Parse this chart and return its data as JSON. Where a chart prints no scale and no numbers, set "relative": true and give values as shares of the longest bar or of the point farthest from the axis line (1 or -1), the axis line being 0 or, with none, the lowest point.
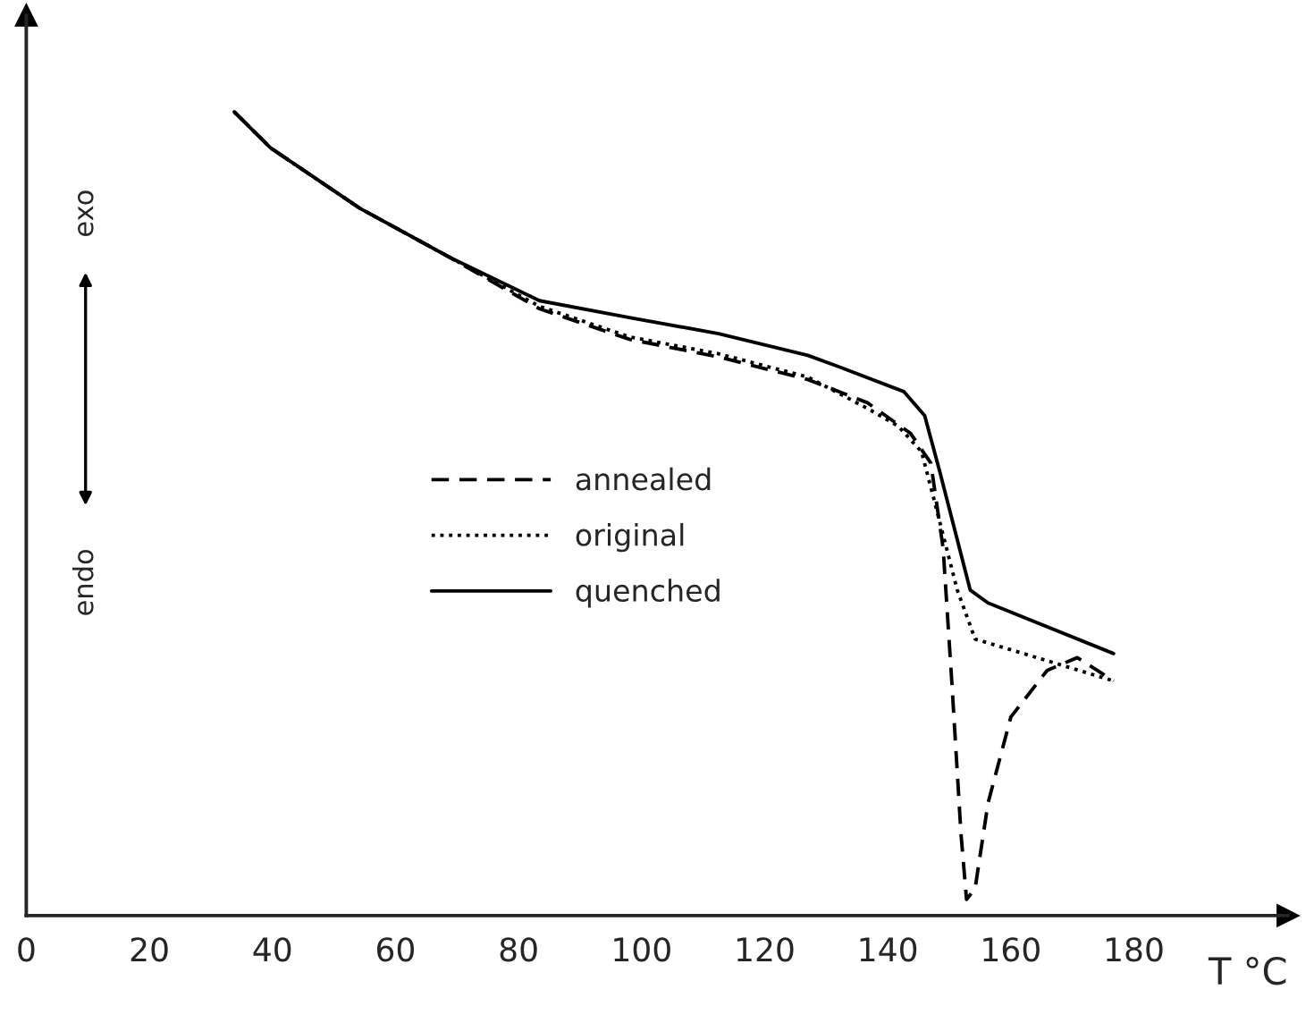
{
  "chart_data": {
    "type": "line",
    "relative": true,
    "xlabel": "T °C",
    "xlim": [
      0,
      205
    ],
    "xticks": [
      0,
      20,
      40,
      60,
      80,
      100,
      120,
      140,
      160,
      180
    ],
    "legend": "center left",
    "grid": false,
    "marker": "none",
    "annotations": [
      "exo",
      "endo"
    ],
    "series": [
      {
        "name": "annealed",
        "color": "#000000",
        "line_style": "dashed",
        "x": [
          33.8,
          39.7,
          54.2,
          68.8,
          83.4,
          98,
          112.5,
          127,
          136.7,
          143.7,
          147,
          149,
          150.4,
          151.9,
          152.8,
          154.2,
          156.3,
          160,
          165.9,
          170.8,
          176.7
        ],
        "values": [
          1.0,
          0.955,
          0.88,
          0.819,
          0.755,
          0.717,
          0.695,
          0.667,
          0.638,
          0.6,
          0.563,
          0.457,
          0.292,
          0.102,
          0.02,
          0.034,
          0.14,
          0.247,
          0.305,
          0.321,
          0.292
        ]
      },
      {
        "name": "original",
        "color": "#000000",
        "line_style": "dotted",
        "x": [
          33.8,
          39.7,
          54.2,
          68.8,
          83.4,
          98,
          112.5,
          127,
          136.7,
          141.7,
          145.5,
          147.5,
          151.3,
          154.2,
          161.2,
          176.7
        ],
        "values": [
          1.0,
          0.955,
          0.88,
          0.819,
          0.758,
          0.72,
          0.699,
          0.67,
          0.631,
          0.609,
          0.577,
          0.518,
          0.405,
          0.344,
          0.328,
          0.292
        ]
      },
      {
        "name": "quenched",
        "color": "#000000",
        "line_style": "solid",
        "x": [
          33.8,
          39.7,
          54.2,
          68.8,
          83.4,
          98,
          112.5,
          127,
          132,
          142.6,
          146,
          148.4,
          153.4,
          156.3,
          176.7
        ],
        "values": [
          1.0,
          0.955,
          0.88,
          0.819,
          0.765,
          0.744,
          0.724,
          0.697,
          0.683,
          0.652,
          0.622,
          0.554,
          0.405,
          0.389,
          0.326
        ]
      }
    ]
  }
}
